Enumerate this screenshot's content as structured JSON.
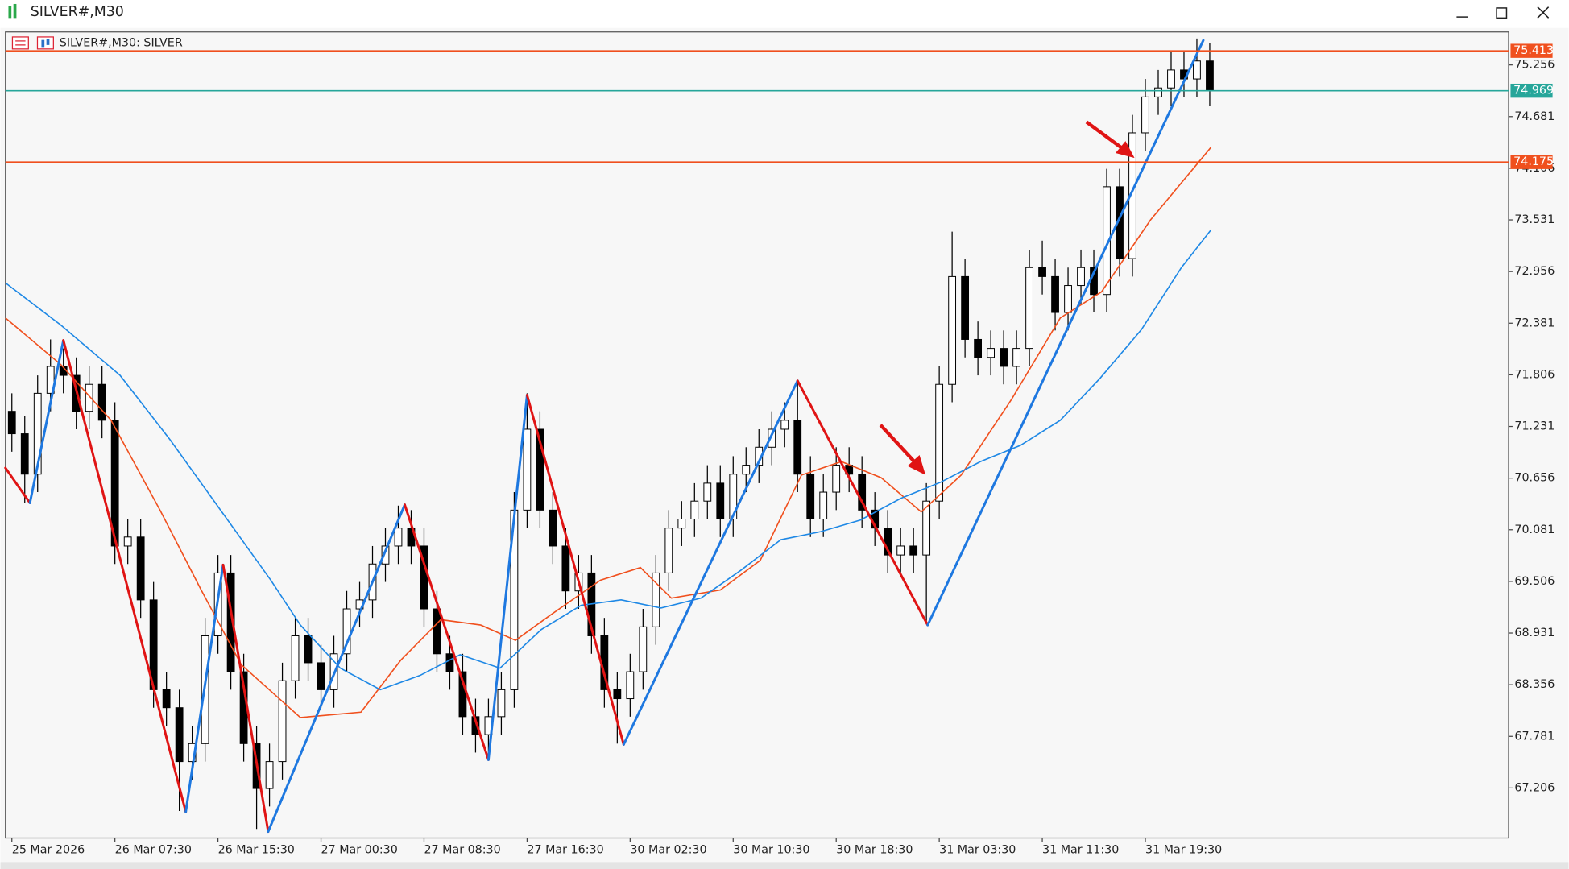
{
  "window": {
    "title": "SILVER#,M30"
  },
  "chart_data": {
    "type": "candlestick",
    "label": "SILVER#,M30:  SILVER",
    "open": [
      71.4,
      71.15,
      70.7,
      71.6,
      71.9,
      71.8,
      71.4,
      71.7,
      71.3,
      69.9,
      70.0,
      69.3,
      68.3,
      68.1,
      67.5,
      67.7,
      68.9,
      69.6,
      68.5,
      67.7,
      67.2,
      67.5,
      68.4,
      68.9,
      68.6,
      68.3,
      68.7,
      69.2,
      69.3,
      69.7,
      69.9,
      70.1,
      69.9,
      69.2,
      68.7,
      68.5,
      68.0,
      67.8,
      68.0,
      68.3,
      70.3,
      71.2,
      70.3,
      69.9,
      69.4,
      69.6,
      68.9,
      68.3,
      68.2,
      68.5,
      69.0,
      69.6,
      70.1,
      70.2,
      70.4,
      70.6,
      70.2,
      70.7,
      70.8,
      71.0,
      71.2,
      71.3,
      70.7,
      70.2,
      70.5,
      70.8,
      70.7,
      70.3,
      70.1,
      69.8,
      69.9,
      69.8,
      70.4,
      71.7,
      72.9,
      72.2,
      72.0,
      72.1,
      71.9,
      72.1,
      73.0,
      72.9,
      72.5,
      72.8,
      73.0,
      72.7,
      73.9,
      73.1,
      74.5,
      74.9,
      75.0,
      75.2,
      75.1,
      75.3
    ],
    "high": [
      71.6,
      71.35,
      71.8,
      72.2,
      72.1,
      72.0,
      71.9,
      71.9,
      71.5,
      70.2,
      70.2,
      69.5,
      68.5,
      68.3,
      67.9,
      69.1,
      69.8,
      69.8,
      68.7,
      67.9,
      67.7,
      68.6,
      69.1,
      69.1,
      68.8,
      68.9,
      69.4,
      69.5,
      69.9,
      70.1,
      70.35,
      70.3,
      70.1,
      69.4,
      68.9,
      68.7,
      68.2,
      68.2,
      68.5,
      70.5,
      71.6,
      71.4,
      70.5,
      70.1,
      69.8,
      69.8,
      69.1,
      68.5,
      68.7,
      69.2,
      69.8,
      70.3,
      70.4,
      70.6,
      70.8,
      70.8,
      70.9,
      71.0,
      71.2,
      71.4,
      71.5,
      71.75,
      70.9,
      70.7,
      71.0,
      71.0,
      70.9,
      70.5,
      70.3,
      70.1,
      70.1,
      70.6,
      71.9,
      73.4,
      73.1,
      72.4,
      72.3,
      72.3,
      72.3,
      73.2,
      73.3,
      73.1,
      73.0,
      73.2,
      73.2,
      74.1,
      74.1,
      74.7,
      75.1,
      75.2,
      75.4,
      75.4,
      75.55,
      75.5
    ],
    "low": [
      70.95,
      70.38,
      70.5,
      71.4,
      71.6,
      71.2,
      71.2,
      71.1,
      69.7,
      69.7,
      69.1,
      68.1,
      67.9,
      66.95,
      67.3,
      67.5,
      68.7,
      68.3,
      67.5,
      66.75,
      67.0,
      67.3,
      68.2,
      68.4,
      68.1,
      68.1,
      68.5,
      69.0,
      69.1,
      69.5,
      69.7,
      69.7,
      69.0,
      68.5,
      68.3,
      67.8,
      67.6,
      67.55,
      67.8,
      68.1,
      70.1,
      70.1,
      69.7,
      69.2,
      69.2,
      68.7,
      68.1,
      67.7,
      68.0,
      68.3,
      68.8,
      69.4,
      69.9,
      70.0,
      70.2,
      70.0,
      70.0,
      70.5,
      70.6,
      70.8,
      71.0,
      70.5,
      70.0,
      70.0,
      70.3,
      70.5,
      70.1,
      69.9,
      69.6,
      69.6,
      69.6,
      69.05,
      70.2,
      71.5,
      72.0,
      71.8,
      71.8,
      71.7,
      71.7,
      71.9,
      72.7,
      72.3,
      72.3,
      72.6,
      72.5,
      72.5,
      72.9,
      72.9,
      74.3,
      74.7,
      74.8,
      74.9,
      74.9,
      74.8
    ],
    "close": [
      71.15,
      70.7,
      71.6,
      71.9,
      71.8,
      71.4,
      71.7,
      71.3,
      69.9,
      70.0,
      69.3,
      68.3,
      68.1,
      67.5,
      67.7,
      68.9,
      69.6,
      68.5,
      67.7,
      67.2,
      67.5,
      68.4,
      68.9,
      68.6,
      68.3,
      68.7,
      69.2,
      69.3,
      69.7,
      69.9,
      70.1,
      69.9,
      69.2,
      68.7,
      68.5,
      68.0,
      67.8,
      68.0,
      68.3,
      70.3,
      71.2,
      70.3,
      69.9,
      69.4,
      69.6,
      68.9,
      68.3,
      68.2,
      68.5,
      69.0,
      69.6,
      70.1,
      70.2,
      70.4,
      70.6,
      70.2,
      70.7,
      70.8,
      71.0,
      71.2,
      71.3,
      70.7,
      70.2,
      70.5,
      70.8,
      70.7,
      70.3,
      70.1,
      69.8,
      69.9,
      69.8,
      70.4,
      71.7,
      72.9,
      72.2,
      72.0,
      72.1,
      71.9,
      72.1,
      73.0,
      72.9,
      72.5,
      72.8,
      73.0,
      72.7,
      73.9,
      73.1,
      74.5,
      74.9,
      75.0,
      75.2,
      75.1,
      75.3,
      74.97
    ],
    "up_color": "#ffffff",
    "down_color": "#000000",
    "xlim": [
      -0.5,
      116.2
    ],
    "xticks": [
      {
        "value": 0,
        "label": "25 Mar 2026"
      },
      {
        "value": 8,
        "label": "26 Mar 07:30"
      },
      {
        "value": 16,
        "label": "26 Mar 15:30"
      },
      {
        "value": 24,
        "label": "27 Mar 00:30"
      },
      {
        "value": 32,
        "label": "27 Mar 08:30"
      },
      {
        "value": 40,
        "label": "27 Mar 16:30"
      },
      {
        "value": 48,
        "label": "30 Mar 02:30"
      },
      {
        "value": 56,
        "label": "30 Mar 10:30"
      },
      {
        "value": 64,
        "label": "30 Mar 18:30"
      },
      {
        "value": 72,
        "label": "31 Mar 03:30"
      },
      {
        "value": 80,
        "label": "31 Mar 11:30"
      },
      {
        "value": 88,
        "label": "31 Mar 19:30"
      }
    ],
    "ylim": [
      66.649,
      75.623
    ],
    "yticks": [
      75.256,
      74.681,
      74.106,
      73.531,
      72.956,
      72.381,
      71.806,
      71.231,
      70.656,
      70.081,
      69.506,
      68.931,
      68.356,
      67.781,
      67.206
    ],
    "lines": [
      {
        "color": "#f0501e",
        "x": [
          -0.5,
          3.8,
          7.7,
          11.5,
          14.7,
          17.8,
          22.4,
          27.1,
          30.2,
          33.3,
          36.4,
          39.1,
          41.8,
          45.7,
          48.8,
          51.2,
          55.0,
          58.1,
          61.3,
          64.4,
          67.5,
          70.6,
          73.7,
          77.6,
          81.4,
          84.6,
          88.4,
          93.1
        ],
        "values": [
          72.44,
          71.92,
          71.3,
          70.3,
          69.41,
          68.58,
          67.99,
          68.05,
          68.63,
          69.08,
          69.02,
          68.85,
          69.13,
          69.52,
          69.66,
          69.32,
          69.41,
          69.74,
          70.69,
          70.84,
          70.66,
          70.28,
          70.69,
          71.53,
          72.44,
          72.73,
          73.53,
          74.34
        ]
      },
      {
        "color": "#1e88e5",
        "x": [
          -0.5,
          3.8,
          8.4,
          12.3,
          16.2,
          20.1,
          22.4,
          25.5,
          28.6,
          31.7,
          34.8,
          37.9,
          41.1,
          44.2,
          47.3,
          50.4,
          53.5,
          56.6,
          59.7,
          62.8,
          65.9,
          69.0,
          72.1,
          75.2,
          78.3,
          81.4,
          84.5,
          87.7,
          90.8,
          93.1
        ],
        "values": [
          72.83,
          72.36,
          71.8,
          71.08,
          70.3,
          69.52,
          69.02,
          68.54,
          68.3,
          68.46,
          68.69,
          68.54,
          68.97,
          69.24,
          69.3,
          69.21,
          69.32,
          69.63,
          69.97,
          70.06,
          70.19,
          70.43,
          70.61,
          70.84,
          71.02,
          71.3,
          71.77,
          72.31,
          73.0,
          73.42
        ]
      }
    ],
    "zigzag": {
      "up_color": "#1e78e0",
      "down_color": "#e01414",
      "x": [
        -0.5,
        1.4,
        4.0,
        13.5,
        16.4,
        19.9,
        30.5,
        37.0,
        40.0,
        47.5,
        61.0,
        71.1,
        92.5
      ],
      "values": [
        70.77,
        70.38,
        72.19,
        66.94,
        69.69,
        66.72,
        70.36,
        67.52,
        71.58,
        67.69,
        71.74,
        69.02,
        75.53
      ]
    },
    "levels": [
      {
        "value": 75.413,
        "color": "#f0501e"
      },
      {
        "value": 74.175,
        "color": "#f0501e"
      }
    ],
    "last_price": {
      "value": 74.969,
      "color": "#26a69a"
    }
  }
}
